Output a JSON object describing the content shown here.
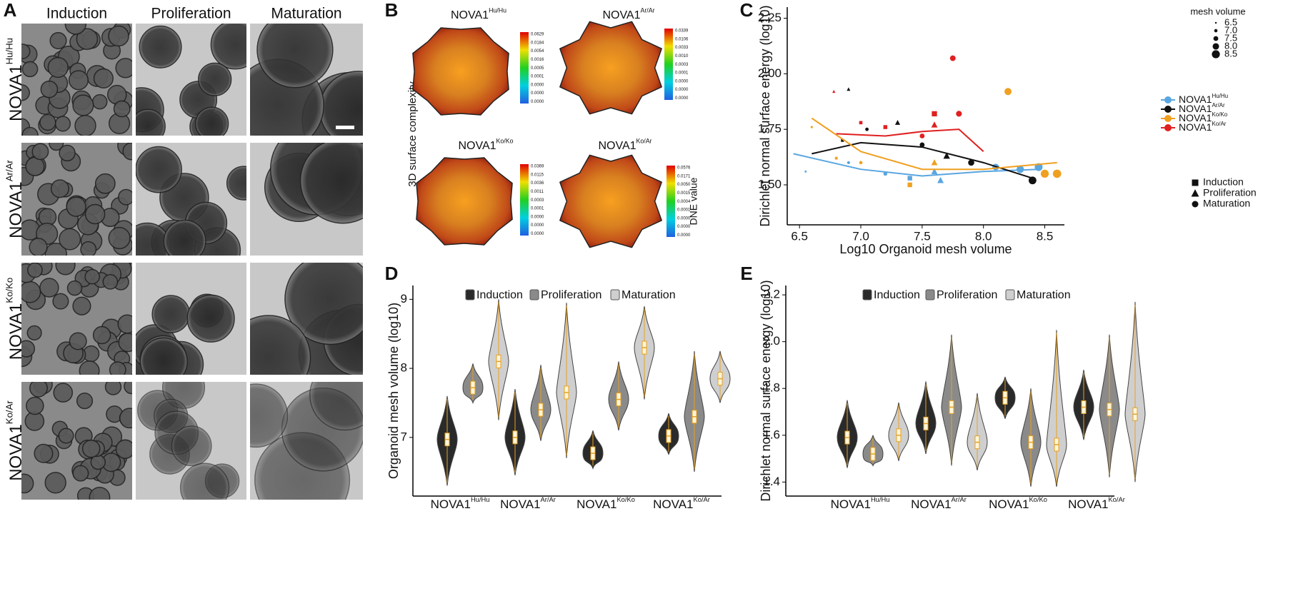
{
  "panel_labels": [
    "A",
    "B",
    "C",
    "D",
    "E"
  ],
  "panel_a": {
    "columns": [
      "Induction",
      "Proliferation",
      "Maturation"
    ],
    "rows": [
      {
        "base": "NOVA1",
        "sup": "Hu/Hu"
      },
      {
        "base": "NOVA1",
        "sup": "Ar/Ar"
      },
      {
        "base": "NOVA1",
        "sup": "Ko/Ko"
      },
      {
        "base": "NOVA1",
        "sup": "Ko/Ar"
      }
    ]
  },
  "panel_b": {
    "y_label": "3D surface complexity",
    "colorbar_label": "DNE value",
    "meshes": [
      {
        "base": "NOVA1",
        "sup": "Hu/Hu",
        "scale": [
          "0.0629",
          "0.0184",
          "0.0054",
          "0.0016",
          "0.0005",
          "0.0001",
          "0.0000",
          "0.0000",
          "0.0000"
        ]
      },
      {
        "base": "NOVA1",
        "sup": "Ar/Ar",
        "scale": [
          "0.0339",
          "0.0106",
          "0.0033",
          "0.0010",
          "0.0003",
          "0.0001",
          "0.0000",
          "0.0000",
          "0.0000"
        ]
      },
      {
        "base": "NOVA1",
        "sup": "Ko/Ko",
        "scale": [
          "0.0369",
          "0.0115",
          "0.0036",
          "0.0011",
          "0.0003",
          "0.0001",
          "0.0000",
          "0.0000",
          "0.0000"
        ]
      },
      {
        "base": "NOVA1",
        "sup": "Ko/Ar",
        "scale": [
          "0.0576",
          "0.0171",
          "0.0050",
          "0.0015",
          "0.0004",
          "0.0001",
          "0.0000",
          "0.0000",
          "0.0000"
        ]
      }
    ]
  },
  "chart_data": [
    {
      "type": "scatter",
      "x_label": "Log10 Organoid mesh volume",
      "y_label": "Dirichlet normal surface energy (log10)",
      "xlim": [
        6.4,
        8.66
      ],
      "xticks": [
        6.5,
        {
          "value": 7,
          "label": "7.0"
        },
        7.5,
        {
          "value": 8,
          "label": "8.0"
        },
        8.5
      ],
      "ylim": [
        1.32,
        2.3
      ],
      "yticks": [
        {
          "value": 1.5,
          "label": "1.50"
        },
        {
          "value": 1.75,
          "label": "1.75"
        },
        {
          "value": 2,
          "label": "2.00"
        },
        {
          "value": 2.25,
          "label": "2.25"
        }
      ],
      "size_title": "mesh volume",
      "size_legend": [
        6.5,
        {
          "value": 7,
          "label": "7.0"
        },
        7.5,
        {
          "value": 8,
          "label": "8.0"
        },
        8.5
      ],
      "stages": [
        "Induction",
        "Proliferation",
        "Maturation"
      ],
      "series": [
        {
          "name": "NOVA1",
          "sup": "Hu/Hu",
          "color": "#5aa6e0",
          "x": [
            6.55,
            6.9,
            7.2,
            7.4,
            7.6,
            7.65,
            8.1,
            8.3,
            8.45
          ],
          "y": [
            1.56,
            1.6,
            1.55,
            1.53,
            1.56,
            1.52,
            1.58,
            1.57,
            1.58
          ],
          "stage": [
            0,
            2,
            2,
            0,
            1,
            1,
            2,
            2,
            2
          ],
          "trend_x": [
            6.45,
            7,
            7.5,
            8,
            8.45
          ],
          "trend_y": [
            1.64,
            1.57,
            1.54,
            1.56,
            1.57
          ]
        },
        {
          "name": "NOVA1",
          "sup": "Ar/Ar",
          "color": "#111111",
          "x": [
            6.85,
            6.9,
            7.05,
            7.3,
            7.5,
            7.7,
            7.9,
            8.4
          ],
          "y": [
            1.7,
            1.93,
            1.75,
            1.78,
            1.68,
            1.63,
            1.6,
            1.52
          ],
          "stage": [
            0,
            1,
            2,
            1,
            2,
            1,
            2,
            2
          ],
          "trend_x": [
            6.6,
            7,
            7.5,
            8,
            8.4
          ],
          "trend_y": [
            1.64,
            1.69,
            1.67,
            1.6,
            1.53
          ]
        },
        {
          "name": "NOVA1",
          "sup": "Ko/Ko",
          "color": "#f0a020",
          "x": [
            6.6,
            6.8,
            7,
            7.4,
            7.6,
            8.2,
            8.5,
            8.6
          ],
          "y": [
            1.76,
            1.62,
            1.6,
            1.5,
            1.6,
            1.92,
            1.55,
            1.55
          ],
          "stage": [
            0,
            0,
            2,
            0,
            1,
            2,
            2,
            2
          ],
          "trend_x": [
            6.6,
            7,
            7.5,
            8,
            8.6
          ],
          "trend_y": [
            1.8,
            1.65,
            1.57,
            1.57,
            1.6
          ]
        },
        {
          "name": "NOVA1",
          "sup": "Ko/Ar",
          "color": "#e02020",
          "x": [
            6.78,
            7,
            7.2,
            7.5,
            7.6,
            7.75,
            7.8,
            7.6
          ],
          "y": [
            1.92,
            1.78,
            1.76,
            1.72,
            1.77,
            2.07,
            1.82,
            1.82
          ],
          "stage": [
            1,
            0,
            0,
            2,
            1,
            2,
            2,
            0
          ],
          "trend_x": [
            6.8,
            7.2,
            7.5,
            7.8,
            8
          ],
          "trend_y": [
            1.73,
            1.72,
            1.74,
            1.75,
            1.65
          ]
        }
      ]
    },
    {
      "type": "violin",
      "y_label": "Organoid mesh volume (log10)",
      "ylim": [
        6.15,
        9.2
      ],
      "yticks": [
        7,
        8,
        9
      ],
      "groups": [
        {
          "base": "NOVA1",
          "sup": "Hu/Hu"
        },
        {
          "base": "NOVA1",
          "sup": "Ar/Ar"
        },
        {
          "base": "NOVA1",
          "sup": "Ko/Ko"
        },
        {
          "base": "NOVA1",
          "sup": "Ko/Ar"
        }
      ],
      "series": [
        {
          "name": "Induction",
          "color": "#2a2a2a",
          "values": [
            6.97,
            7.0,
            6.77,
            7.02
          ],
          "low": [
            6.3,
            6.45,
            6.55,
            6.75
          ],
          "high": [
            7.6,
            7.7,
            7.1,
            7.35
          ]
        },
        {
          "name": "Proliferation",
          "color": "#8a8a8a",
          "values": [
            7.72,
            7.4,
            7.55,
            7.3
          ],
          "low": [
            7.5,
            6.95,
            7.1,
            6.5
          ],
          "high": [
            8.07,
            8.05,
            8.1,
            8.25
          ]
        },
        {
          "name": "Maturation",
          "color": "#cfcfcf",
          "values": [
            8.1,
            7.65,
            8.3,
            7.85
          ],
          "low": [
            7.25,
            6.7,
            7.55,
            7.5
          ],
          "high": [
            9.0,
            8.95,
            8.9,
            8.25
          ]
        }
      ]
    },
    {
      "type": "violin",
      "y_label": "Dirichlet normal surface energy (log10)",
      "ylim": [
        1.34,
        2.24
      ],
      "yticks": [
        {
          "value": 1.4,
          "label": "1.4"
        },
        {
          "value": 1.6,
          "label": "1.6"
        },
        {
          "value": 1.8,
          "label": "1.8"
        },
        {
          "value": 2,
          "label": "2.0"
        },
        {
          "value": 2.2,
          "label": "2.2"
        }
      ],
      "groups": [
        {
          "base": "NOVA1",
          "sup": "Hu/Hu"
        },
        {
          "base": "NOVA1",
          "sup": "Ar/Ar"
        },
        {
          "base": "NOVA1",
          "sup": "Ko/Ko"
        },
        {
          "base": "NOVA1",
          "sup": "Ko/Ar"
        }
      ],
      "series": [
        {
          "name": "Induction",
          "color": "#2a2a2a",
          "values": [
            1.59,
            1.65,
            1.76,
            1.72
          ],
          "low": [
            1.46,
            1.52,
            1.67,
            1.58
          ],
          "high": [
            1.75,
            1.83,
            1.85,
            1.88
          ]
        },
        {
          "name": "Proliferation",
          "color": "#8a8a8a",
          "values": [
            1.52,
            1.72,
            1.57,
            1.71
          ],
          "low": [
            1.47,
            1.47,
            1.38,
            1.42
          ],
          "high": [
            1.6,
            2.03,
            1.8,
            2.03
          ]
        },
        {
          "name": "Maturation",
          "color": "#cfcfcf",
          "values": [
            1.6,
            1.57,
            1.56,
            1.69
          ],
          "low": [
            1.49,
            1.45,
            1.38,
            1.4
          ],
          "high": [
            1.74,
            1.78,
            2.05,
            2.17
          ]
        }
      ]
    }
  ]
}
